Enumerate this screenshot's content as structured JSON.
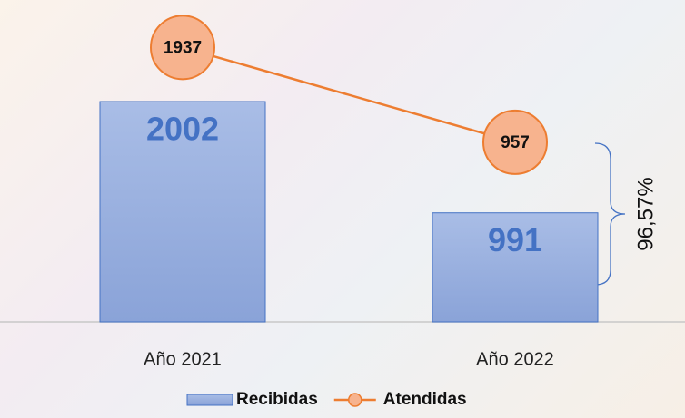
{
  "chart_data": {
    "type": "bar-line",
    "categories": [
      "Año 2021",
      "Año 2022"
    ],
    "series": [
      {
        "name": "Recibidas",
        "type": "bar",
        "color": "#4472c4",
        "values": [
          2002,
          991
        ]
      },
      {
        "name": "Atendidas",
        "type": "line",
        "color": "#ed7d31",
        "axis": "y2",
        "values": [
          1937,
          957
        ]
      }
    ],
    "ylim": [
      0,
      2760
    ],
    "y2lim": [
      -900,
      2240
    ],
    "annotation": "96,57%",
    "legend": "bottom"
  }
}
